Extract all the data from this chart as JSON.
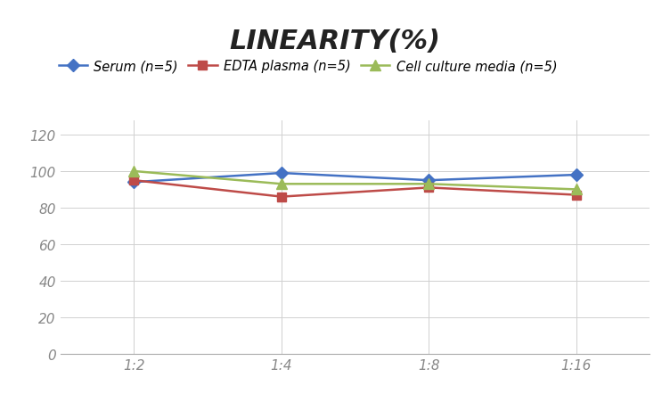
{
  "title": "LINEARITY(%)",
  "x_labels": [
    "1:2",
    "1:4",
    "1:8",
    "1:16"
  ],
  "x_positions": [
    0,
    1,
    2,
    3
  ],
  "series": [
    {
      "name": "Serum (n=5)",
      "values": [
        94,
        99,
        95,
        98
      ],
      "color": "#4472C4",
      "marker": "D",
      "linewidth": 1.8,
      "markersize": 7
    },
    {
      "name": "EDTA plasma (n=5)",
      "values": [
        95,
        86,
        91,
        87
      ],
      "color": "#BE4B48",
      "marker": "s",
      "linewidth": 1.8,
      "markersize": 7
    },
    {
      "name": "Cell culture media (n=5)",
      "values": [
        100,
        93,
        93,
        90
      ],
      "color": "#9BBB59",
      "marker": "^",
      "linewidth": 1.8,
      "markersize": 8
    }
  ],
  "ylim": [
    0,
    128
  ],
  "yticks": [
    0,
    20,
    40,
    60,
    80,
    100,
    120
  ],
  "background_color": "#FFFFFF",
  "grid_color": "#D0D0D0",
  "title_fontsize": 22,
  "legend_fontsize": 10.5,
  "tick_fontsize": 11
}
